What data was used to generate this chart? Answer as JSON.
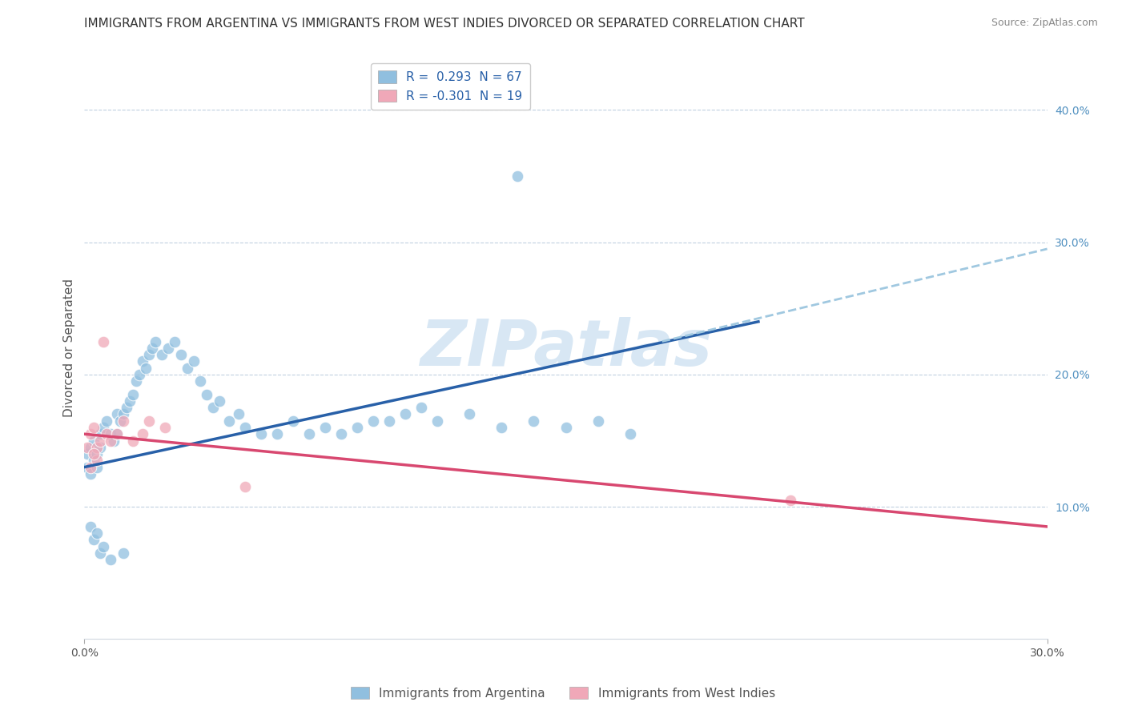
{
  "title": "IMMIGRANTS FROM ARGENTINA VS IMMIGRANTS FROM WEST INDIES DIVORCED OR SEPARATED CORRELATION CHART",
  "source": "Source: ZipAtlas.com",
  "ylabel": "Divorced or Separated",
  "legend_blue_r": "R =  0.293",
  "legend_blue_n": "N = 67",
  "legend_pink_r": "R = -0.301",
  "legend_pink_n": "N = 19",
  "watermark": "ZIPatlas",
  "right_yticks": [
    "40.0%",
    "30.0%",
    "20.0%",
    "10.0%"
  ],
  "right_ytick_vals": [
    0.4,
    0.3,
    0.2,
    0.1
  ],
  "xlim": [
    0.0,
    0.3
  ],
  "ylim": [
    0.0,
    0.44
  ],
  "blue_color": "#90bfdf",
  "pink_color": "#f0a8b8",
  "blue_line_color": "#2860a8",
  "pink_line_color": "#d84870",
  "blue_dash_color": "#a0c8e0",
  "background_color": "#ffffff",
  "grid_color": "#c0d0e0",
  "blue_scatter": {
    "x": [
      0.001,
      0.001,
      0.002,
      0.002,
      0.003,
      0.003,
      0.004,
      0.004,
      0.005,
      0.005,
      0.006,
      0.007,
      0.008,
      0.009,
      0.01,
      0.01,
      0.011,
      0.012,
      0.013,
      0.014,
      0.015,
      0.016,
      0.017,
      0.018,
      0.019,
      0.02,
      0.021,
      0.022,
      0.024,
      0.026,
      0.028,
      0.03,
      0.032,
      0.034,
      0.036,
      0.038,
      0.04,
      0.042,
      0.045,
      0.048,
      0.05,
      0.055,
      0.06,
      0.065,
      0.07,
      0.075,
      0.08,
      0.085,
      0.09,
      0.095,
      0.1,
      0.105,
      0.11,
      0.12,
      0.13,
      0.14,
      0.15,
      0.16,
      0.17,
      0.002,
      0.003,
      0.004,
      0.005,
      0.006,
      0.008,
      0.012,
      0.135
    ],
    "y": [
      0.14,
      0.13,
      0.145,
      0.125,
      0.15,
      0.135,
      0.14,
      0.13,
      0.155,
      0.145,
      0.16,
      0.165,
      0.155,
      0.15,
      0.17,
      0.155,
      0.165,
      0.17,
      0.175,
      0.18,
      0.185,
      0.195,
      0.2,
      0.21,
      0.205,
      0.215,
      0.22,
      0.225,
      0.215,
      0.22,
      0.225,
      0.215,
      0.205,
      0.21,
      0.195,
      0.185,
      0.175,
      0.18,
      0.165,
      0.17,
      0.16,
      0.155,
      0.155,
      0.165,
      0.155,
      0.16,
      0.155,
      0.16,
      0.165,
      0.165,
      0.17,
      0.175,
      0.165,
      0.17,
      0.16,
      0.165,
      0.16,
      0.165,
      0.155,
      0.085,
      0.075,
      0.08,
      0.065,
      0.07,
      0.06,
      0.065,
      0.35
    ]
  },
  "pink_scatter": {
    "x": [
      0.001,
      0.002,
      0.003,
      0.004,
      0.005,
      0.006,
      0.007,
      0.008,
      0.01,
      0.012,
      0.015,
      0.018,
      0.02,
      0.025,
      0.05,
      0.22,
      0.002,
      0.004,
      0.003
    ],
    "y": [
      0.145,
      0.155,
      0.16,
      0.145,
      0.15,
      0.225,
      0.155,
      0.15,
      0.155,
      0.165,
      0.15,
      0.155,
      0.165,
      0.16,
      0.115,
      0.105,
      0.13,
      0.135,
      0.14
    ]
  },
  "blue_line": {
    "x": [
      0.0,
      0.21
    ],
    "y": [
      0.13,
      0.24
    ]
  },
  "blue_dash": {
    "x": [
      0.18,
      0.3
    ],
    "y": [
      0.225,
      0.295
    ]
  },
  "pink_line": {
    "x": [
      0.0,
      0.3
    ],
    "y": [
      0.155,
      0.085
    ]
  },
  "xtick_bottom": [
    0.0,
    0.3
  ],
  "xtick_labels": [
    "0.0%",
    "30.0%"
  ]
}
